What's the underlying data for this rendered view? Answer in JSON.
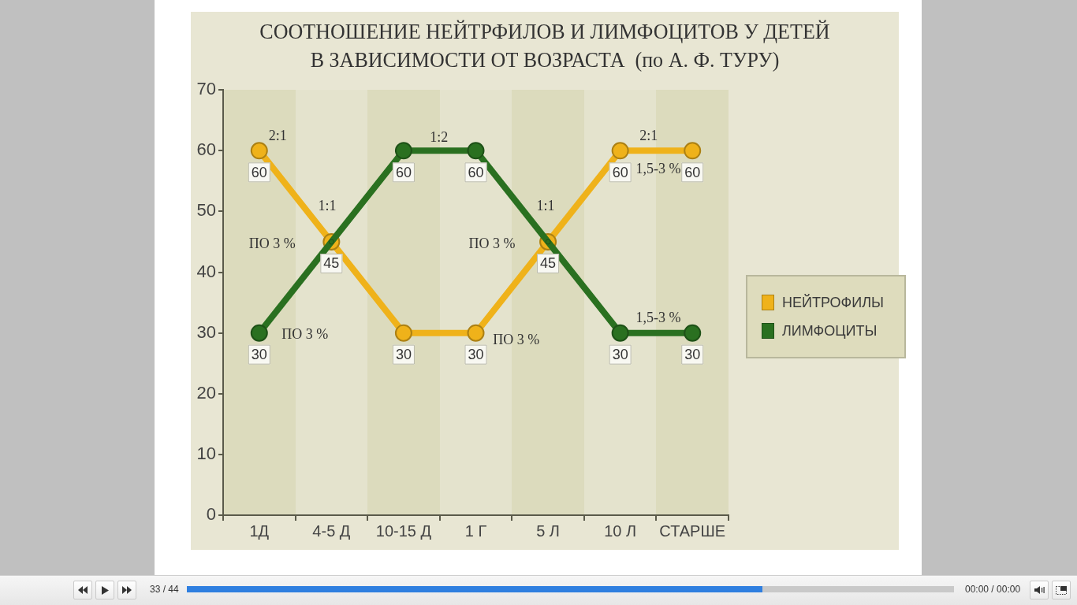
{
  "chart_data": {
    "type": "line",
    "title": "СООТНОШЕНИЕ НЕЙТРФИЛОВ И ЛИМФОЦИТОВ У ДЕТЕЙ\nВ ЗАВИСИМОСТИ ОТ ВОЗРАСТА  (по А. Ф. ТУРУ)",
    "categories": [
      "1Д",
      "4-5 Д",
      "10-15 Д",
      "1 Г",
      "5 Л",
      "10 Л",
      "СТАРШЕ"
    ],
    "series": [
      {
        "name": "НЕЙТРОФИЛЫ",
        "color": "#efb21a",
        "values": [
          60,
          45,
          30,
          30,
          45,
          60,
          60
        ],
        "value_labels": [
          "60",
          "45",
          "30",
          "30",
          "45",
          "60",
          "60"
        ]
      },
      {
        "name": "ЛИМФОЦИТЫ",
        "color": "#2a7020",
        "values": [
          30,
          45,
          60,
          60,
          45,
          30,
          30
        ],
        "value_labels": [
          "30",
          null,
          "60",
          "60",
          null,
          "30",
          "30"
        ]
      }
    ],
    "ylim": [
      0,
      70
    ],
    "yticks": [
      0,
      10,
      20,
      30,
      40,
      50,
      60,
      70
    ],
    "grid": false,
    "legend": "right",
    "marker": "circle",
    "line_style": "solid",
    "annotations": [
      "2:1",
      "1:2",
      "2:1",
      "1,5-3 %",
      "1:1",
      "1:1",
      "ПО 3 %",
      "ПО 3 %",
      "1,5-3 %",
      "ПО 3 %",
      "ПО 3 %",
      "33 / 44",
      "00:00 / 00:00"
    ]
  }
}
